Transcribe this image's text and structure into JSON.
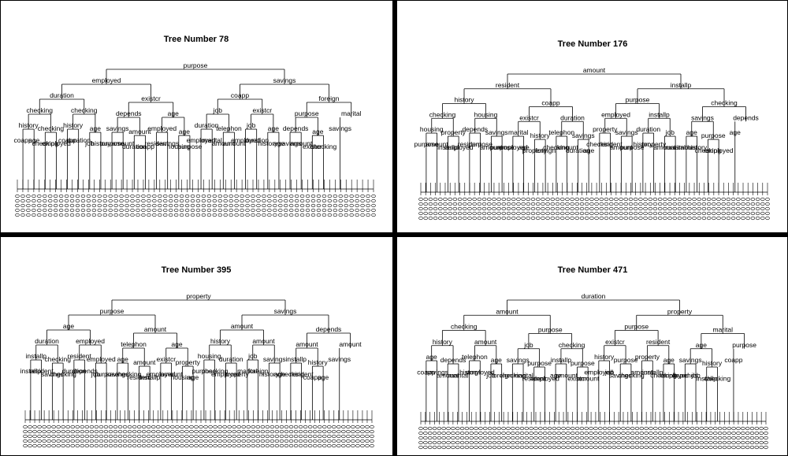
{
  "panels": [
    {
      "title": "Tree Number  78",
      "labels": [
        "purpose",
        "employed",
        "duration",
        "checking",
        "history",
        "coapp",
        "age",
        "checking",
        "checking",
        "employed",
        "checking",
        "history",
        "coapp",
        "duration",
        "age",
        "job",
        "history",
        "existcr",
        "depends",
        "savings",
        "purpose",
        "amount",
        "amount",
        "duration",
        "coapp",
        "age",
        "employed",
        "resident",
        "savings",
        "age",
        "housing",
        "purpose",
        "savings",
        "coapp",
        "job",
        "duration",
        "employed",
        "marital",
        "telephon",
        "amount",
        "amount",
        "existcr",
        "job",
        "employed",
        "duration",
        "age",
        "history",
        "age",
        "foreign",
        "purpose",
        "depends",
        "savings",
        "amount",
        "age",
        "existcr",
        "checking",
        "marital",
        "savings"
      ],
      "leaves": 66
    },
    {
      "title": "Tree Number  176",
      "labels": [
        "amount",
        "resident",
        "history",
        "checking",
        "housing",
        "purpose",
        "amount",
        "property",
        "installp",
        "employed",
        "housing",
        "depends",
        "resident",
        "purpose",
        "savings",
        "amount",
        "purpose",
        "coapp",
        "existcr",
        "marital",
        "employed",
        "age",
        "history",
        "property",
        "foreign",
        "duration",
        "telephon",
        "checking",
        "amount",
        "savings",
        "duration",
        "age",
        "installp",
        "purpose",
        "employed",
        "property",
        "checking",
        "resident",
        "savings",
        "amount",
        "purpose",
        "installp",
        "duration",
        "history",
        "property",
        "job",
        "amount",
        "marital",
        "checking",
        "savings",
        "age",
        "amount",
        "history",
        "purpose",
        "checking",
        "employed",
        "depends",
        "age"
      ],
      "leaves": 72
    },
    {
      "title": "Tree Number  395",
      "labels": [
        "property",
        "purpose",
        "age",
        "duration",
        "installp",
        "installp",
        "resident",
        "checking",
        "savings",
        "checking",
        "employed",
        "resident",
        "duration",
        "depends",
        "employed",
        "job",
        "purpose",
        "amount",
        "telephon",
        "age",
        "savings",
        "checking",
        "amount",
        "resident",
        "installp",
        "age",
        "existcr",
        "employed",
        "amount",
        "property",
        "housing",
        "age",
        "savings",
        "amount",
        "history",
        "housing",
        "purpose",
        "checking",
        "duration",
        "employed",
        "property",
        "amount",
        "job",
        "marital",
        "foreign",
        "savings",
        "history",
        "age",
        "depends",
        "amount",
        "installp",
        "checking",
        "resident",
        "history",
        "coapp",
        "age",
        "amount",
        "savings"
      ],
      "leaves": 74
    },
    {
      "title": "Tree Number  471",
      "labels": [
        "duration",
        "amount",
        "checking",
        "history",
        "age",
        "coapp",
        "savings",
        "depends",
        "amount",
        "marital",
        "amount",
        "telephon",
        "history",
        "employed",
        "age",
        "job",
        "foreign",
        "purpose",
        "job",
        "savings",
        "checking",
        "marital",
        "purpose",
        "resident",
        "employed",
        "checking",
        "installp",
        "age",
        "amount",
        "purpose",
        "existcr",
        "amount",
        "property",
        "purpose",
        "existcr",
        "history",
        "employed",
        "job",
        "purpose",
        "savings",
        "checking",
        "resident",
        "property",
        "amount",
        "installp",
        "age",
        "checking",
        "employed",
        "marital",
        "age",
        "savings",
        "depends",
        "job",
        "history",
        "installp",
        "checking",
        "purpose",
        "coapp"
      ],
      "leaves": 76
    }
  ]
}
